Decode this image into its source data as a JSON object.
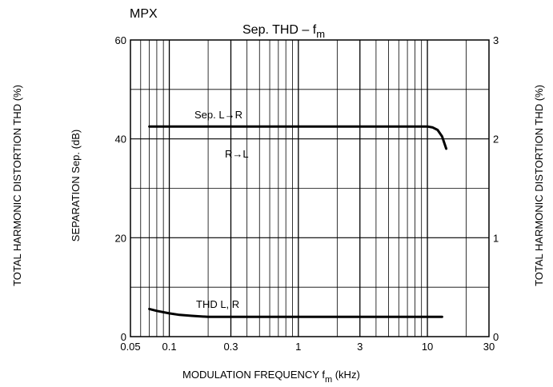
{
  "chart_data": {
    "type": "line",
    "top_label": "MPX",
    "title": {
      "prefix": "Sep. THD  –  f",
      "sub": "m"
    },
    "xlabel": {
      "prefix": "MODULATION  FREQUENCY   f",
      "sub": "m",
      "suffix": "   (kHz)"
    },
    "ylabel_left_outer": "TOTAL HARMONIC DISTORTION   THD   (%)",
    "ylabel_left_inner": "SEPARATION   Sep.  (dB)",
    "ylabel_right": "TOTAL HARMONIC DISTORTION   THD   (%)",
    "x_scale": "log",
    "xlim": [
      0.05,
      30
    ],
    "ylim_left": [
      0,
      60
    ],
    "ylim_right": [
      0,
      3
    ],
    "grid": true,
    "x_ticks": [
      {
        "value": 0.05,
        "label": "0.05"
      },
      {
        "value": 0.1,
        "label": "0.1"
      },
      {
        "value": 0.3,
        "label": "0.3"
      },
      {
        "value": 1,
        "label": "1"
      },
      {
        "value": 3,
        "label": "3"
      },
      {
        "value": 10,
        "label": "10"
      },
      {
        "value": 30,
        "label": "30"
      }
    ],
    "y_ticks_left": [
      {
        "value": 0,
        "label": "0"
      },
      {
        "value": 20,
        "label": "20"
      },
      {
        "value": 40,
        "label": "40"
      },
      {
        "value": 60,
        "label": "60"
      }
    ],
    "y_ticks_right": [
      {
        "value": 0,
        "label": "0"
      },
      {
        "value": 1,
        "label": "1"
      },
      {
        "value": 2,
        "label": "2"
      },
      {
        "value": 3,
        "label": "3"
      }
    ],
    "series": [
      {
        "name": "Sep. L→R",
        "secondary_label": "R→L",
        "axis": "left",
        "x": [
          0.07,
          0.1,
          0.3,
          1,
          3,
          8,
          10,
          11,
          12,
          13,
          14
        ],
        "y": [
          42.5,
          42.5,
          42.5,
          42.5,
          42.5,
          42.5,
          42.5,
          42.3,
          41.8,
          40.5,
          38
        ]
      },
      {
        "name": "THD L, R",
        "axis": "right",
        "x": [
          0.07,
          0.08,
          0.1,
          0.12,
          0.15,
          0.2,
          0.3,
          1,
          3,
          10,
          13
        ],
        "y": [
          0.28,
          0.26,
          0.235,
          0.22,
          0.21,
          0.2,
          0.2,
          0.2,
          0.2,
          0.2,
          0.2
        ]
      }
    ]
  }
}
